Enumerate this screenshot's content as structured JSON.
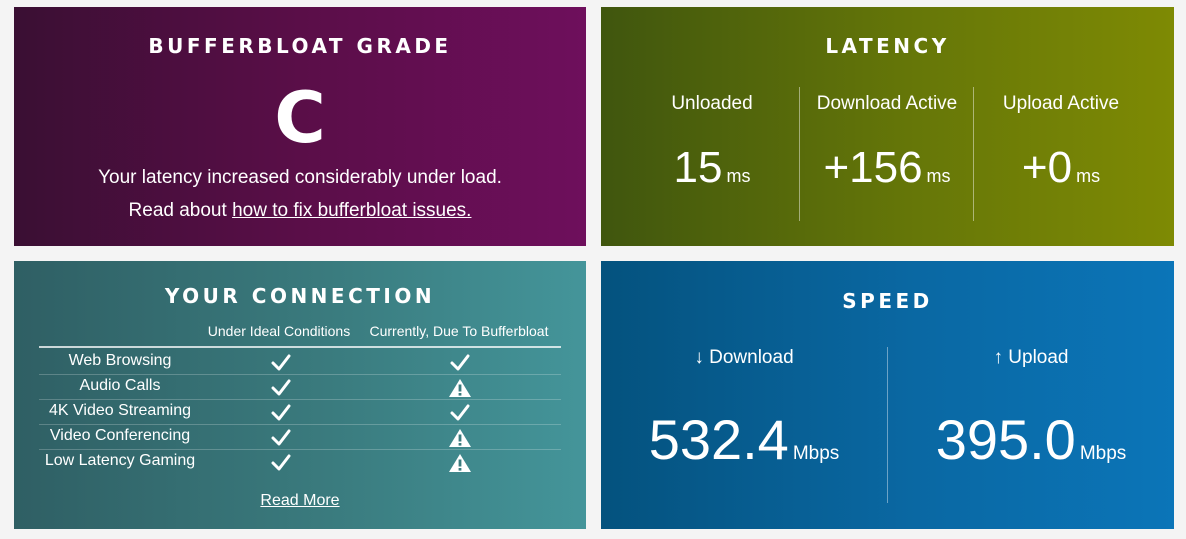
{
  "grade": {
    "title": "BUFFERBLOAT GRADE",
    "letter": "C",
    "description": "Your latency increased considerably under load.",
    "read_prefix": "Read about ",
    "read_link": "how to fix bufferbloat issues."
  },
  "latency": {
    "title": "LATENCY",
    "columns": [
      {
        "label": "Unloaded",
        "value": "15",
        "unit": "ms"
      },
      {
        "label": "Download Active",
        "value": "+156",
        "unit": "ms"
      },
      {
        "label": "Upload Active",
        "value": "+0",
        "unit": "ms"
      }
    ]
  },
  "connection": {
    "title": "YOUR CONNECTION",
    "col_ideal": "Under Ideal Conditions",
    "col_current": "Currently, Due To Bufferbloat",
    "rows": [
      {
        "label": "Web Browsing",
        "ideal": "check",
        "current": "check"
      },
      {
        "label": "Audio Calls",
        "ideal": "check",
        "current": "warning"
      },
      {
        "label": "4K Video Streaming",
        "ideal": "check",
        "current": "check"
      },
      {
        "label": "Video Conferencing",
        "ideal": "check",
        "current": "warning"
      },
      {
        "label": "Low Latency Gaming",
        "ideal": "check",
        "current": "warning"
      }
    ],
    "read_more": "Read More"
  },
  "speed": {
    "title": "SPEED",
    "download": {
      "label": "↓ Download",
      "value": "532.4",
      "unit": "Mbps"
    },
    "upload": {
      "label": "↑ Upload",
      "value": "395.0",
      "unit": "Mbps"
    }
  },
  "colors": {
    "grade_bg": "#5a0e48",
    "latency_bg": "#667708",
    "connection_bg": "#3a7b7e",
    "speed_bg": "#0a68a3"
  }
}
